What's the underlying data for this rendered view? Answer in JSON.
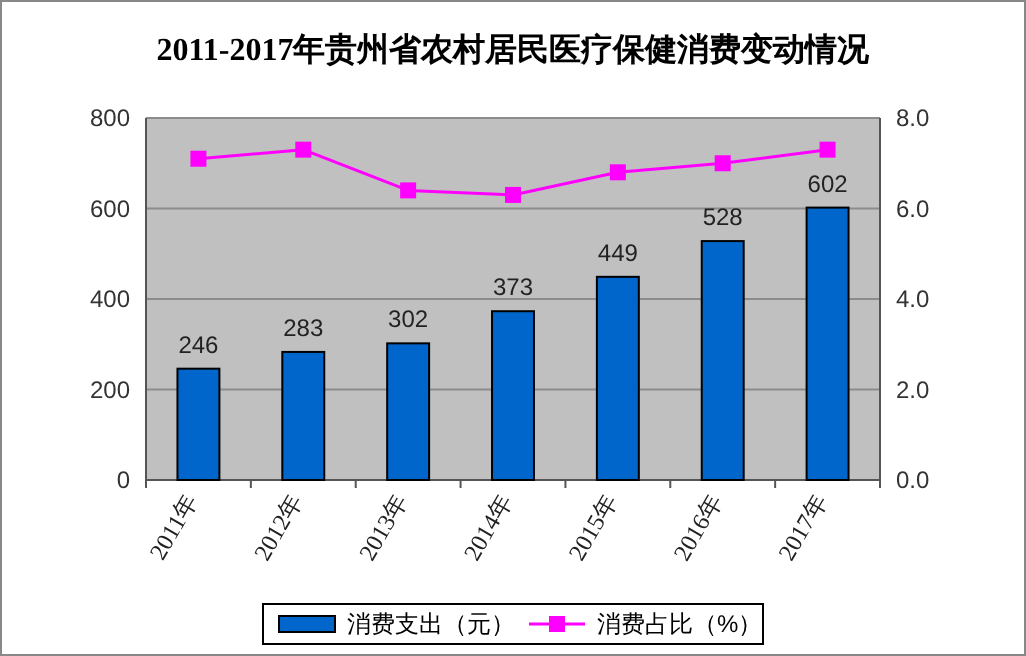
{
  "chart_data": {
    "type": "bar",
    "title": "2011-2017年贵州省农村居民医疗保健消费变动情况",
    "categories": [
      "2011年",
      "2012年",
      "2013年",
      "2014年",
      "2015年",
      "2016年",
      "2017年"
    ],
    "series": [
      {
        "name": "消费支出（元）",
        "color": "#0066cc",
        "values": [
          246,
          283,
          302,
          373,
          449,
          528,
          602
        ]
      },
      {
        "name": "消费占比（%）",
        "type": "line",
        "axis": "y2",
        "color": "#ff00ff",
        "marker": "square",
        "values": [
          7.1,
          7.3,
          6.4,
          6.3,
          6.8,
          7.0,
          7.3
        ]
      }
    ],
    "value_labels": [
      "246",
      "283",
      "302",
      "373",
      "449",
      "528",
      "602"
    ],
    "ylim": [
      0,
      800
    ],
    "yticks": [
      0,
      200,
      400,
      600,
      800
    ],
    "y2lim": [
      0,
      8
    ],
    "y2ticks": [
      {
        "value": 0,
        "label": "0.0"
      },
      {
        "value": 2,
        "label": "2.0"
      },
      {
        "value": 4,
        "label": "4.0"
      },
      {
        "value": 6,
        "label": "6.0"
      },
      {
        "value": 8,
        "label": "8.0"
      }
    ],
    "grid": "y",
    "legend": "bottom"
  }
}
